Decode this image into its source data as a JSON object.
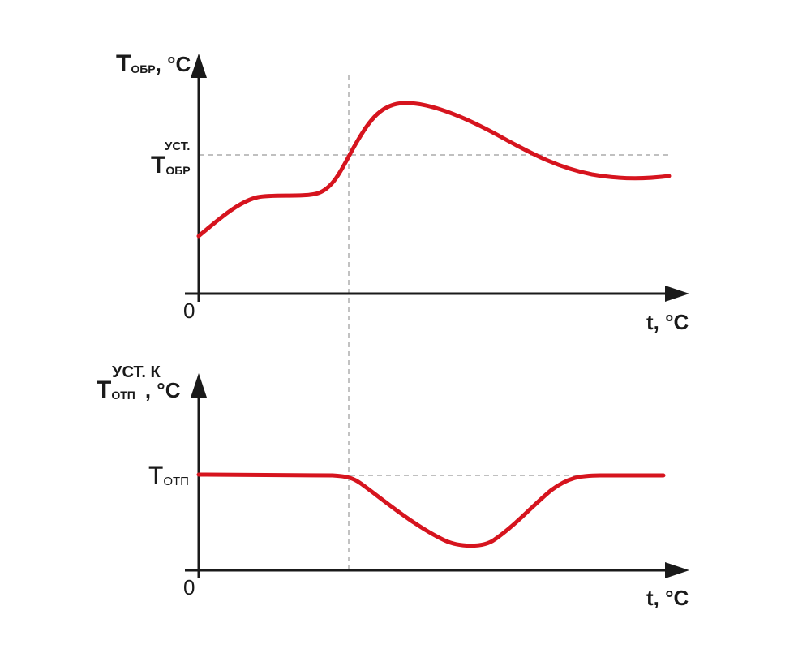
{
  "colors": {
    "curve": "#d6141e",
    "axis": "#1a1a1a",
    "guide": "#9a9a9a"
  },
  "top_plot": {
    "y_axis_label": {
      "main": "T",
      "sub": "ОБР",
      "unit": ", °C"
    },
    "setpoint_label": {
      "main": "T",
      "sub": "ОБР",
      "sup": "УСТ."
    },
    "origin_label": "0",
    "x_axis_label": "t, °C"
  },
  "bottom_plot": {
    "y_axis_label": {
      "main": "T",
      "sub": "ОТП",
      "sup": "УСТ. К",
      "unit": ", °C"
    },
    "level_label": {
      "main": "T",
      "sub": "ОТП"
    },
    "origin_label": "0",
    "x_axis_label": "t, °C"
  }
}
